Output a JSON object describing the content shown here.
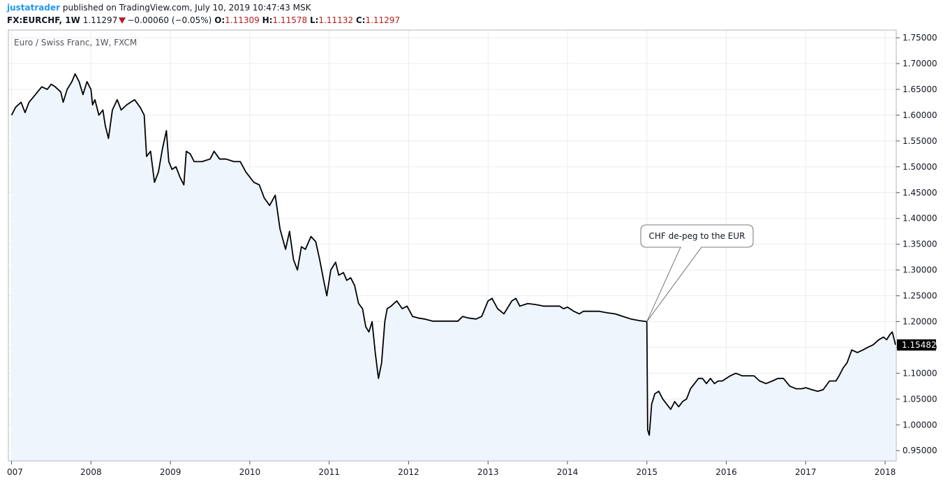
{
  "header": {
    "author": "justatrader",
    "published": "published on TradingView.com, July 10, 2019 10:47:43 MSK"
  },
  "quote": {
    "symbol": "FX:EURCHF, 1W",
    "last": "1.11297",
    "change": "−0.00060 (−0.05%)",
    "open_label": "O:",
    "open": "1.11309",
    "high_label": "H:",
    "high": "1.11578",
    "low_label": "L:",
    "low": "1.11132",
    "close_label": "C:",
    "close": "1.11297",
    "down_color": "#b71c1c"
  },
  "chart_data": {
    "type": "area",
    "subtitle": "Euro / Swiss Franc, 1W, FXCM",
    "ylim": [
      0.93,
      1.765
    ],
    "yticks": [
      "0.95000",
      "1.00000",
      "1.05000",
      "1.10000",
      "1.15000",
      "1.20000",
      "1.25000",
      "1.30000",
      "1.35000",
      "1.40000",
      "1.45000",
      "1.50000",
      "1.55000",
      "1.60000",
      "1.65000",
      "1.70000",
      "1.75000"
    ],
    "xlim": [
      2006.96,
      2018.14
    ],
    "xticks": [
      "007",
      "2008",
      "2009",
      "2010",
      "2011",
      "2012",
      "2013",
      "2014",
      "2015",
      "2016",
      "2017",
      "2018"
    ],
    "grid": true,
    "last_price_label": "1.15482",
    "line_color": "#000000",
    "fill_color": "#eef5fd",
    "annotation": {
      "text": "CHF de-peg to the EUR",
      "x": 2015.0,
      "y": 1.2
    },
    "series": [
      {
        "points": [
          [
            2007.0,
            1.6
          ],
          [
            2007.05,
            1.615
          ],
          [
            2007.12,
            1.625
          ],
          [
            2007.17,
            1.605
          ],
          [
            2007.22,
            1.625
          ],
          [
            2007.3,
            1.64
          ],
          [
            2007.38,
            1.655
          ],
          [
            2007.45,
            1.65
          ],
          [
            2007.5,
            1.66
          ],
          [
            2007.55,
            1.655
          ],
          [
            2007.62,
            1.645
          ],
          [
            2007.65,
            1.625
          ],
          [
            2007.7,
            1.65
          ],
          [
            2007.76,
            1.665
          ],
          [
            2007.8,
            1.68
          ],
          [
            2007.85,
            1.665
          ],
          [
            2007.9,
            1.64
          ],
          [
            2007.95,
            1.665
          ],
          [
            2008.0,
            1.65
          ],
          [
            2008.02,
            1.62
          ],
          [
            2008.05,
            1.63
          ],
          [
            2008.1,
            1.6
          ],
          [
            2008.15,
            1.61
          ],
          [
            2008.18,
            1.58
          ],
          [
            2008.22,
            1.555
          ],
          [
            2008.27,
            1.61
          ],
          [
            2008.33,
            1.63
          ],
          [
            2008.38,
            1.61
          ],
          [
            2008.45,
            1.62
          ],
          [
            2008.5,
            1.625
          ],
          [
            2008.55,
            1.63
          ],
          [
            2008.62,
            1.615
          ],
          [
            2008.67,
            1.6
          ],
          [
            2008.7,
            1.52
          ],
          [
            2008.75,
            1.53
          ],
          [
            2008.8,
            1.47
          ],
          [
            2008.85,
            1.49
          ],
          [
            2008.9,
            1.535
          ],
          [
            2008.95,
            1.57
          ],
          [
            2008.98,
            1.51
          ],
          [
            2009.02,
            1.495
          ],
          [
            2009.07,
            1.5
          ],
          [
            2009.12,
            1.48
          ],
          [
            2009.17,
            1.465
          ],
          [
            2009.2,
            1.53
          ],
          [
            2009.25,
            1.525
          ],
          [
            2009.3,
            1.51
          ],
          [
            2009.4,
            1.51
          ],
          [
            2009.5,
            1.515
          ],
          [
            2009.55,
            1.53
          ],
          [
            2009.62,
            1.515
          ],
          [
            2009.7,
            1.515
          ],
          [
            2009.8,
            1.51
          ],
          [
            2009.88,
            1.51
          ],
          [
            2009.95,
            1.49
          ],
          [
            2010.0,
            1.48
          ],
          [
            2010.05,
            1.47
          ],
          [
            2010.12,
            1.465
          ],
          [
            2010.18,
            1.44
          ],
          [
            2010.25,
            1.425
          ],
          [
            2010.32,
            1.445
          ],
          [
            2010.38,
            1.38
          ],
          [
            2010.45,
            1.34
          ],
          [
            2010.5,
            1.375
          ],
          [
            2010.55,
            1.32
          ],
          [
            2010.6,
            1.3
          ],
          [
            2010.65,
            1.345
          ],
          [
            2010.7,
            1.34
          ],
          [
            2010.77,
            1.365
          ],
          [
            2010.83,
            1.355
          ],
          [
            2010.88,
            1.32
          ],
          [
            2010.93,
            1.28
          ],
          [
            2010.97,
            1.25
          ],
          [
            2011.02,
            1.3
          ],
          [
            2011.08,
            1.315
          ],
          [
            2011.12,
            1.29
          ],
          [
            2011.18,
            1.295
          ],
          [
            2011.22,
            1.28
          ],
          [
            2011.27,
            1.285
          ],
          [
            2011.32,
            1.27
          ],
          [
            2011.37,
            1.235
          ],
          [
            2011.42,
            1.225
          ],
          [
            2011.46,
            1.19
          ],
          [
            2011.5,
            1.18
          ],
          [
            2011.54,
            1.2
          ],
          [
            2011.58,
            1.14
          ],
          [
            2011.62,
            1.09
          ],
          [
            2011.66,
            1.12
          ],
          [
            2011.7,
            1.2
          ],
          [
            2011.73,
            1.225
          ],
          [
            2011.78,
            1.23
          ],
          [
            2011.85,
            1.24
          ],
          [
            2011.92,
            1.225
          ],
          [
            2011.98,
            1.23
          ],
          [
            2012.05,
            1.21
          ],
          [
            2012.12,
            1.207
          ],
          [
            2012.2,
            1.205
          ],
          [
            2012.3,
            1.201
          ],
          [
            2012.5,
            1.201
          ],
          [
            2012.62,
            1.201
          ],
          [
            2012.68,
            1.21
          ],
          [
            2012.75,
            1.207
          ],
          [
            2012.85,
            1.205
          ],
          [
            2012.92,
            1.21
          ],
          [
            2013.0,
            1.24
          ],
          [
            2013.05,
            1.245
          ],
          [
            2013.12,
            1.225
          ],
          [
            2013.2,
            1.215
          ],
          [
            2013.3,
            1.24
          ],
          [
            2013.35,
            1.245
          ],
          [
            2013.4,
            1.23
          ],
          [
            2013.5,
            1.235
          ],
          [
            2013.6,
            1.233
          ],
          [
            2013.7,
            1.23
          ],
          [
            2013.8,
            1.23
          ],
          [
            2013.9,
            1.23
          ],
          [
            2013.95,
            1.225
          ],
          [
            2014.0,
            1.228
          ],
          [
            2014.08,
            1.22
          ],
          [
            2014.15,
            1.215
          ],
          [
            2014.2,
            1.22
          ],
          [
            2014.3,
            1.22
          ],
          [
            2014.4,
            1.22
          ],
          [
            2014.5,
            1.217
          ],
          [
            2014.6,
            1.215
          ],
          [
            2014.7,
            1.21
          ],
          [
            2014.8,
            1.205
          ],
          [
            2014.9,
            1.202
          ],
          [
            2015.0,
            1.2
          ],
          [
            2015.01,
            0.99
          ],
          [
            2015.03,
            0.98
          ],
          [
            2015.06,
            1.04
          ],
          [
            2015.1,
            1.06
          ],
          [
            2015.15,
            1.065
          ],
          [
            2015.2,
            1.05
          ],
          [
            2015.25,
            1.04
          ],
          [
            2015.3,
            1.03
          ],
          [
            2015.35,
            1.045
          ],
          [
            2015.4,
            1.035
          ],
          [
            2015.45,
            1.045
          ],
          [
            2015.5,
            1.05
          ],
          [
            2015.55,
            1.07
          ],
          [
            2015.6,
            1.08
          ],
          [
            2015.65,
            1.09
          ],
          [
            2015.7,
            1.09
          ],
          [
            2015.75,
            1.08
          ],
          [
            2015.8,
            1.09
          ],
          [
            2015.85,
            1.08
          ],
          [
            2015.9,
            1.085
          ],
          [
            2015.95,
            1.085
          ],
          [
            2016.0,
            1.09
          ],
          [
            2016.05,
            1.095
          ],
          [
            2016.12,
            1.1
          ],
          [
            2016.2,
            1.095
          ],
          [
            2016.28,
            1.095
          ],
          [
            2016.35,
            1.095
          ],
          [
            2016.42,
            1.085
          ],
          [
            2016.5,
            1.08
          ],
          [
            2016.58,
            1.085
          ],
          [
            2016.65,
            1.09
          ],
          [
            2016.72,
            1.09
          ],
          [
            2016.8,
            1.075
          ],
          [
            2016.88,
            1.07
          ],
          [
            2016.95,
            1.07
          ],
          [
            2017.0,
            1.072
          ],
          [
            2017.08,
            1.068
          ],
          [
            2017.15,
            1.065
          ],
          [
            2017.22,
            1.068
          ],
          [
            2017.3,
            1.085
          ],
          [
            2017.38,
            1.085
          ],
          [
            2017.42,
            1.095
          ],
          [
            2017.47,
            1.11
          ],
          [
            2017.52,
            1.12
          ],
          [
            2017.58,
            1.145
          ],
          [
            2017.65,
            1.14
          ],
          [
            2017.72,
            1.145
          ],
          [
            2017.78,
            1.15
          ],
          [
            2017.85,
            1.155
          ],
          [
            2017.92,
            1.165
          ],
          [
            2017.98,
            1.17
          ],
          [
            2018.02,
            1.165
          ],
          [
            2018.06,
            1.175
          ],
          [
            2018.09,
            1.18
          ],
          [
            2018.11,
            1.168
          ],
          [
            2018.13,
            1.155
          ]
        ]
      }
    ]
  }
}
